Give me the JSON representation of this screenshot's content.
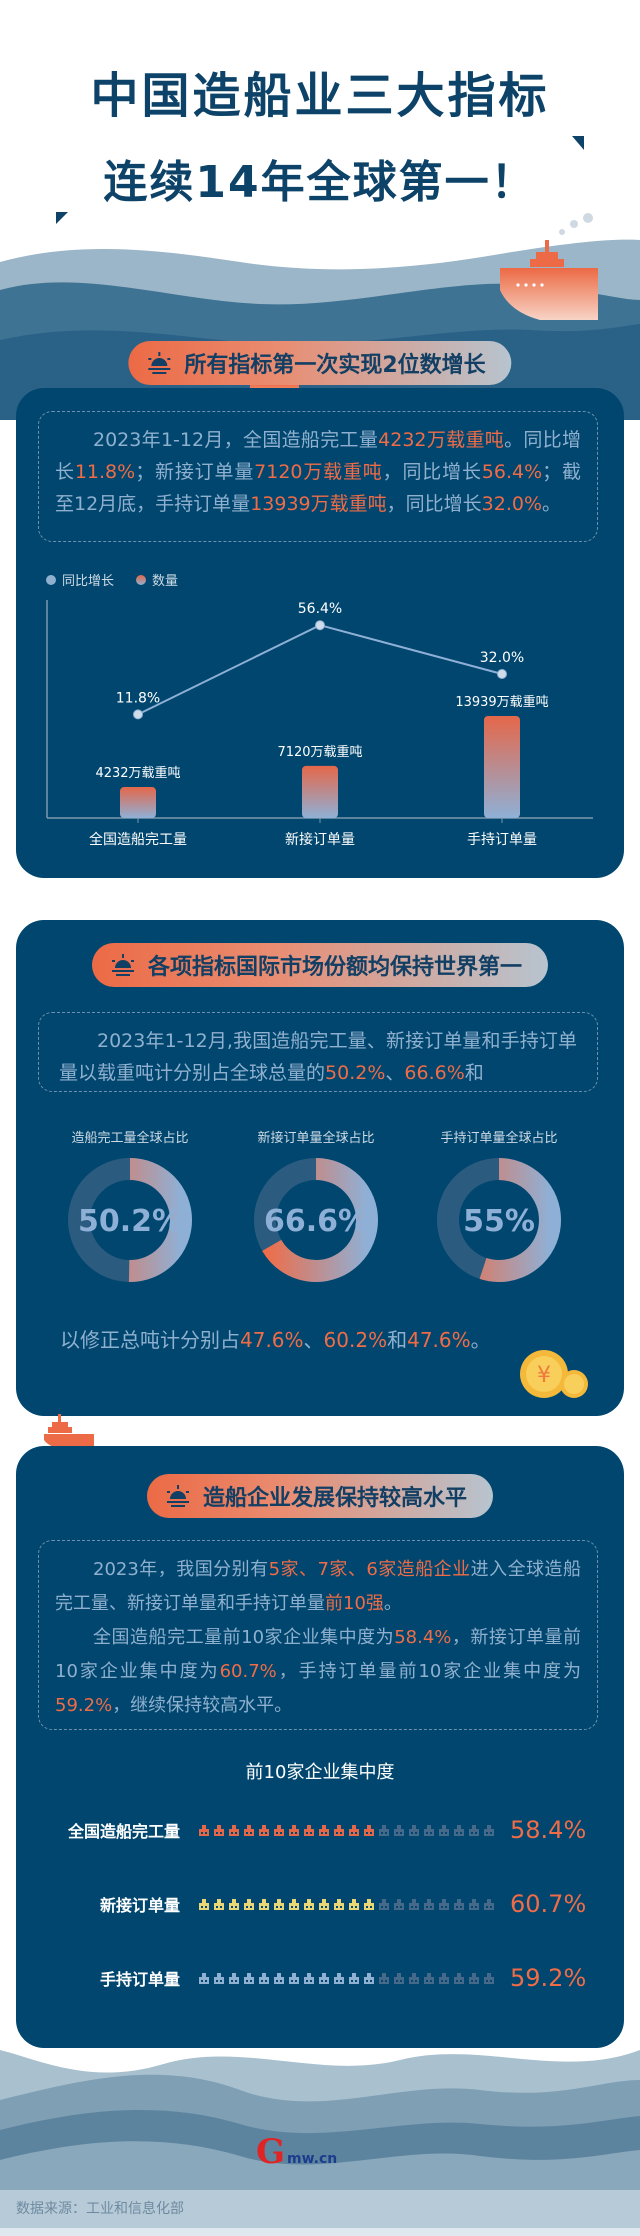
{
  "header": {
    "title_line1": "中国造船业三大指标",
    "title_line2": "连续14年全球第一！"
  },
  "colors": {
    "panel": "#00466e",
    "accent": "#ef6c47",
    "light_blue": "#8fb0cf",
    "yellow": "#e8d774"
  },
  "section1": {
    "heading": "所有指标第一次实现2位数增长",
    "paragraph": [
      {
        "t": "2023年1-12月，全国造船完工量"
      },
      {
        "t": "4232万载重吨",
        "h": true
      },
      {
        "t": "。同比增长"
      },
      {
        "t": "11.8%",
        "h": true
      },
      {
        "t": "；新接订单量"
      },
      {
        "t": "7120万载重吨",
        "h": true
      },
      {
        "t": "，同比增长"
      },
      {
        "t": "56.4%",
        "h": true
      },
      {
        "t": "；截至12月底，手持订单量"
      },
      {
        "t": "13939万载重吨",
        "h": true
      },
      {
        "t": "，同比增长"
      },
      {
        "t": "32.0%",
        "h": true
      },
      {
        "t": "。"
      }
    ]
  },
  "chart_data": {
    "type": "bar+line",
    "categories": [
      "全国造船完工量",
      "新接订单量",
      "手持订单量"
    ],
    "legend": [
      "同比增长",
      "数量"
    ],
    "legend_position": "top-left",
    "series": [
      {
        "name": "同比增长",
        "type": "line",
        "values": [
          11.8,
          56.4,
          32.0
        ],
        "labels": [
          "11.8%",
          "56.4%",
          "32.0%"
        ]
      },
      {
        "name": "数量",
        "type": "bar",
        "values": [
          4232,
          7120,
          13939
        ],
        "labels": [
          "4232万载重吨",
          "7120万载重吨",
          "13939万载重吨"
        ]
      }
    ],
    "grid": false
  },
  "section2": {
    "heading": "各项指标国际市场份额均保持世界第一",
    "paragraph": [
      {
        "t": "2023年1-12月,我国造船完工量、新接订单量和手持订单量以载重吨计分别占全球总量的"
      },
      {
        "t": "50.2%",
        "h": true
      },
      {
        "t": "、"
      },
      {
        "t": "66.6%",
        "h": true
      },
      {
        "t": "和"
      }
    ],
    "donuts": [
      {
        "label": "造船完工量全球占比",
        "value": 50.2,
        "text": "50.2%"
      },
      {
        "label": "新接订单量全球占比",
        "value": 66.6,
        "text": "66.6%"
      },
      {
        "label": "手持订单量全球占比",
        "value": 55,
        "text": "55%"
      }
    ],
    "footer": [
      {
        "t": "以修正总吨计分别占"
      },
      {
        "t": "47.6%",
        "h": true
      },
      {
        "t": "、"
      },
      {
        "t": "60.2%",
        "h": true
      },
      {
        "t": "和"
      },
      {
        "t": "47.6%",
        "h": true
      },
      {
        "t": "。"
      }
    ],
    "coin_symbol": "¥"
  },
  "section3": {
    "heading": "造船企业发展保持较高水平",
    "paragraph1": [
      {
        "t": "2023年，我国分别有"
      },
      {
        "t": "5家、7家、6家造船企业",
        "h": true
      },
      {
        "t": "进入全球造船完工量、新接订单量和手持订单量"
      },
      {
        "t": "前10强",
        "h": true
      },
      {
        "t": "。"
      }
    ],
    "paragraph2": [
      {
        "t": "全国造船完工量前10家企业集中度为"
      },
      {
        "t": "58.4%",
        "h": true
      },
      {
        "t": "，新接订单量前10家企业集中度为"
      },
      {
        "t": "60.7%",
        "h": true
      },
      {
        "t": "，手持订单量前10家企业集中度为"
      },
      {
        "t": "59.2%",
        "h": true
      },
      {
        "t": "，继续保持较高水平。"
      }
    ],
    "subtitle": "前10家企业集中度",
    "rows": [
      {
        "label": "全国造船完工量",
        "value": 58.4,
        "text": "58.4%",
        "color": "#e5674a"
      },
      {
        "label": "新接订单量",
        "value": 60.7,
        "text": "60.7%",
        "color": "#e8d774"
      },
      {
        "label": "手持订单量",
        "value": 59.2,
        "text": "59.2%",
        "color": "#8fb0d0"
      }
    ]
  },
  "footer": {
    "logo_text": "光明网 Gmw.cn",
    "source": "数据来源：工业和信息化部"
  }
}
